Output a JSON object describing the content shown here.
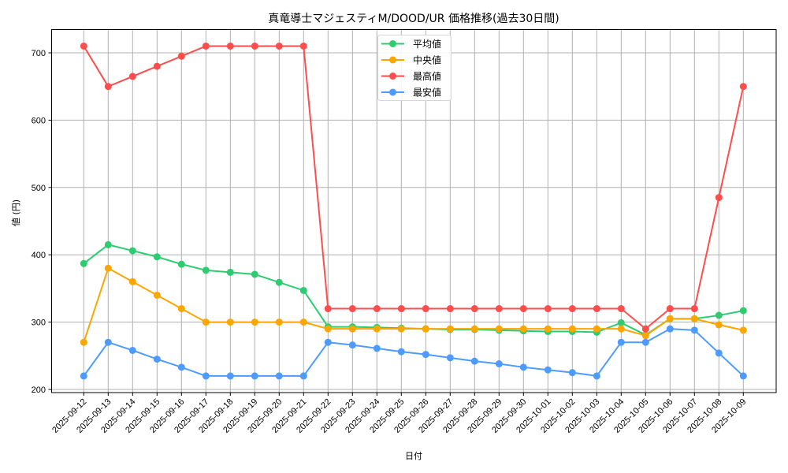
{
  "chart_data": {
    "type": "line",
    "title": "真竜導士マジェスティM/DOOD/UR 価格推移(過去30日間)",
    "xlabel": "日付",
    "ylabel": "値 (円)",
    "ylim": [
      195,
      735
    ],
    "yticks": [
      200,
      300,
      400,
      500,
      600,
      700
    ],
    "grid": true,
    "legend_position": "upper center",
    "x": [
      "2025-09-12",
      "2025-09-13",
      "2025-09-14",
      "2025-09-15",
      "2025-09-16",
      "2025-09-17",
      "2025-09-18",
      "2025-09-19",
      "2025-09-20",
      "2025-09-21",
      "2025-09-22",
      "2025-09-23",
      "2025-09-24",
      "2025-09-25",
      "2025-09-26",
      "2025-09-27",
      "2025-09-28",
      "2025-09-29",
      "2025-09-30",
      "2025-10-01",
      "2025-10-02",
      "2025-10-03",
      "2025-10-04",
      "2025-10-05",
      "2025-10-06",
      "2025-10-07",
      "2025-10-08",
      "2025-10-09"
    ],
    "series": [
      {
        "name": "平均値",
        "color": "#2ecc71",
        "values": [
          387,
          415,
          406,
          397,
          386,
          377,
          374,
          371,
          359,
          347,
          293,
          293,
          292,
          291,
          290,
          289,
          289,
          288,
          287,
          286,
          286,
          285,
          299,
          281,
          305,
          305,
          310,
          317
        ]
      },
      {
        "name": "中央値",
        "color": "#ffa500",
        "values": [
          270,
          380,
          360,
          340,
          320,
          300,
          300,
          300,
          300,
          300,
          290,
          290,
          290,
          290,
          290,
          290,
          290,
          290,
          290,
          290,
          290,
          290,
          290,
          280,
          305,
          305,
          296,
          288
        ]
      },
      {
        "name": "最高値",
        "color": "#ff4d4d",
        "values": [
          710,
          650,
          665,
          680,
          695,
          710,
          710,
          710,
          710,
          710,
          320,
          320,
          320,
          320,
          320,
          320,
          320,
          320,
          320,
          320,
          320,
          320,
          320,
          290,
          320,
          320,
          485,
          650
        ]
      },
      {
        "name": "最安値",
        "color": "#4d9bff",
        "values": [
          220,
          270,
          258,
          245,
          233,
          220,
          220,
          220,
          220,
          220,
          270,
          266,
          261,
          256,
          252,
          247,
          242,
          238,
          233,
          229,
          225,
          220,
          270,
          270,
          290,
          288,
          254,
          220
        ]
      }
    ]
  }
}
